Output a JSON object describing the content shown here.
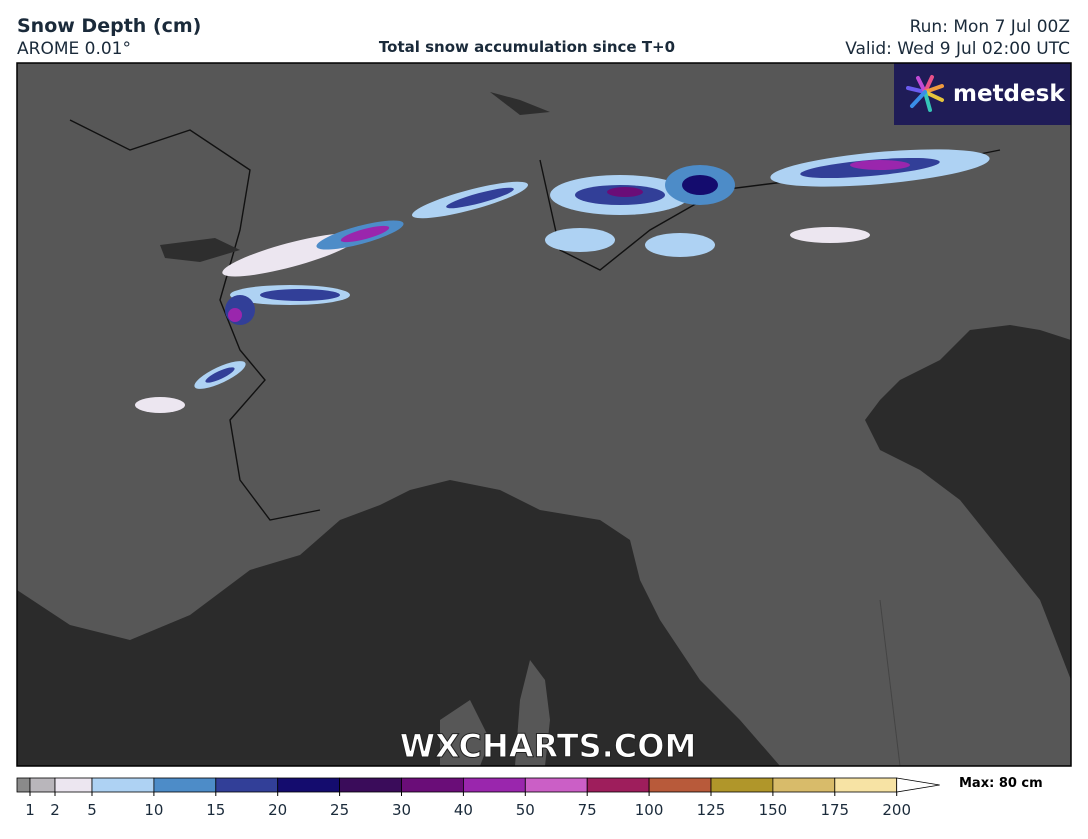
{
  "header": {
    "title": "Snow Depth (cm)",
    "model": "AROME 0.01°",
    "subtitle": "Total snow accumulation since T+0",
    "run": "Run: Mon 7 Jul 00Z",
    "valid": "Valid: Wed 9 Jul 02:00 UTC"
  },
  "logo": "metdesk",
  "watermark": "WXCHARTS.COM",
  "legend": {
    "ticks": [
      1,
      2,
      5,
      10,
      15,
      20,
      25,
      30,
      40,
      50,
      75,
      100,
      125,
      150,
      175,
      200
    ],
    "colors": [
      "#b9b6bb",
      "#ece6f0",
      "#aed2f3",
      "#4d8cc8",
      "#323f98",
      "#140c6e",
      "#3a0c5a",
      "#6a0d78",
      "#9a26ad",
      "#cb5fc6",
      "#9e1e5c",
      "#b85a3a",
      "#b0962a",
      "#d8bb6a",
      "#f7e3a4"
    ],
    "max_label": "Max: 80 cm"
  }
}
